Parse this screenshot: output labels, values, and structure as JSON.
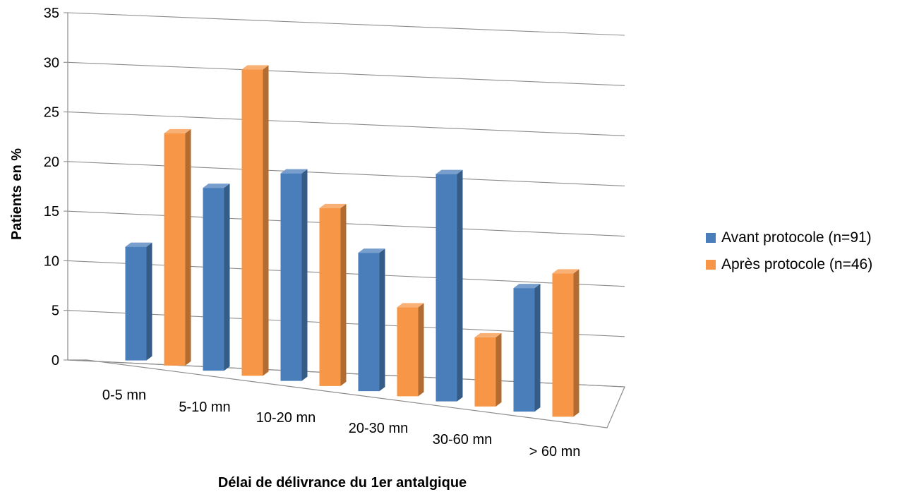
{
  "chart_data": {
    "type": "bar",
    "title": "",
    "xlabel": "Délai de délivrance du 1er antalgique",
    "ylabel": "Patients en %",
    "ylim": [
      0,
      35
    ],
    "yticks": [
      "0",
      "5",
      "10",
      "15",
      "20",
      "25",
      "30",
      "35"
    ],
    "categories": [
      "0-5 mn",
      "5-10 mn",
      "10-20 mn",
      "20-30 mn",
      "30-60 mn",
      "> 60 mn"
    ],
    "series": [
      {
        "name": "Avant protocole (n=91)",
        "color": "#4a7ebb",
        "values": [
          11.5,
          18.5,
          21.0,
          14.0,
          23.0,
          12.5
        ]
      },
      {
        "name": "Après protocole (n=46)",
        "color": "#f79646",
        "values": [
          23.5,
          31.0,
          18.0,
          9.0,
          7.0,
          14.5
        ]
      }
    ],
    "grid": true,
    "legend_position": "right",
    "style": "3d-column"
  }
}
